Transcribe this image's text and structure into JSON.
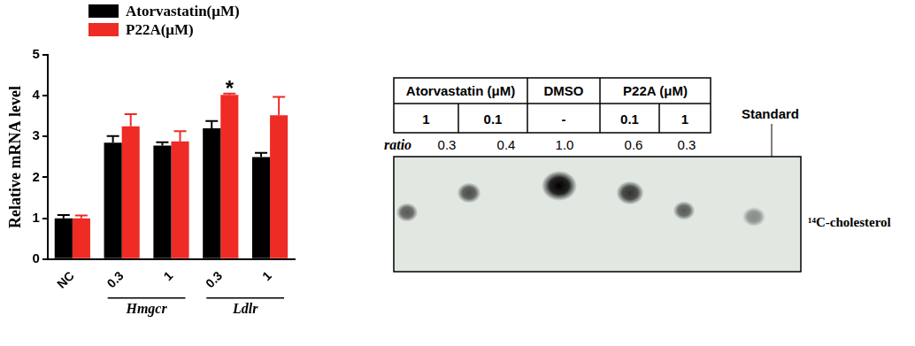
{
  "chart_data": {
    "type": "bar",
    "ylabel": "Relative mRNA level",
    "categories": [
      "NC",
      "0.3",
      "1",
      "0.3",
      "1"
    ],
    "groups": [
      {
        "label": "Hmgcr",
        "indices": [
          1,
          2
        ]
      },
      {
        "label": "Ldlr",
        "indices": [
          3,
          4
        ]
      }
    ],
    "series": [
      {
        "name": "Atorvastatin(μM)",
        "color": "#000000",
        "values": [
          1.0,
          2.85,
          2.78,
          3.2,
          2.5
        ],
        "errors": [
          0.08,
          0.16,
          0.08,
          0.18,
          0.1
        ]
      },
      {
        "name": "P22A(μM)",
        "color": "#ee2b24",
        "values": [
          1.0,
          3.25,
          2.88,
          4.02,
          3.52
        ],
        "errors": [
          0.07,
          0.3,
          0.25,
          0.03,
          0.45
        ]
      }
    ],
    "ylim": [
      0,
      5
    ],
    "yticks": [
      0,
      1,
      2,
      3,
      4,
      5
    ],
    "grid": false,
    "legend": "top-left",
    "annotations": [
      {
        "text": "*",
        "index": 3,
        "series": "P22A(μM)"
      }
    ]
  },
  "blot": {
    "table": {
      "header": [
        {
          "label": "Atorvastatin (μM)",
          "span": 2
        },
        {
          "label": "DMSO",
          "span": 1
        },
        {
          "label": "P22A (μM)",
          "span": 2
        }
      ],
      "doses": [
        1,
        0.1,
        "-",
        0.1,
        1
      ]
    },
    "ratio_label": "ratio",
    "ratios": [
      0.3,
      0.4,
      {
        "value": 1,
        "label": "1.0"
      },
      0.6,
      0.3
    ],
    "standard_label": "Standard",
    "band_label": "¹⁴C-cholesterol"
  }
}
